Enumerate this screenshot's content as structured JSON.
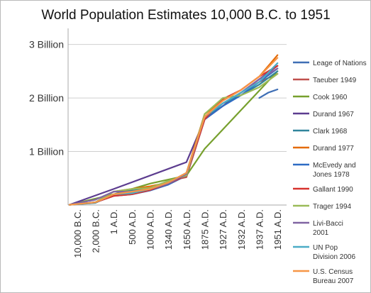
{
  "chart_data": {
    "type": "line",
    "title": "World Population Estimates 10,000 B.C. to 1951",
    "categories": [
      "10,000 B.C.",
      "2,000 B.C.",
      "1 A.D.",
      "500 A.D.",
      "1000 A.D.",
      "1340 A.D.",
      "1650 A.D.",
      "1875 A.D.",
      "1927 A.D.",
      "1932 A.D.",
      "1937 A.D.",
      "1951 A.D."
    ],
    "y_ticks": [
      {
        "value": 1,
        "label": "1 Billion"
      },
      {
        "value": 2,
        "label": "2 Billion"
      },
      {
        "value": 3,
        "label": "3 Billion"
      }
    ],
    "ylim": [
      0,
      3.3
    ],
    "grid": "horizontal",
    "legend_position": "right",
    "series": [
      {
        "name": "Leage of Nations",
        "color": "#3f6fb5",
        "points": [
          [
            10,
            2.0
          ],
          [
            10.5,
            2.1
          ],
          [
            11,
            2.16
          ]
        ]
      },
      {
        "name": "Taeuber 1949",
        "color": "#c0504d",
        "points": [
          [
            0,
            0.005
          ],
          [
            1,
            0.05
          ],
          [
            2,
            0.2
          ],
          [
            3,
            0.25
          ],
          [
            4,
            0.3
          ],
          [
            5,
            0.45
          ],
          [
            6,
            0.52
          ],
          [
            7,
            1.6
          ],
          [
            8,
            1.85
          ],
          [
            9,
            2.1
          ],
          [
            10,
            2.3
          ],
          [
            11,
            2.45
          ]
        ]
      },
      {
        "name": "Cook 1960",
        "color": "#77a02e",
        "points": [
          [
            0,
            0.005
          ],
          [
            2,
            0.2
          ],
          [
            4,
            0.4
          ],
          [
            6,
            0.55
          ],
          [
            7,
            1.05
          ],
          [
            11,
            2.5
          ]
        ]
      },
      {
        "name": "Durand 1967",
        "color": "#5c3c8f",
        "points": [
          [
            0,
            0.005
          ],
          [
            2,
            0.3
          ],
          [
            6,
            0.8
          ],
          [
            7,
            1.6
          ],
          [
            11,
            2.6
          ]
        ]
      },
      {
        "name": "Clark 1968",
        "color": "#31859c",
        "points": [
          [
            0,
            0.005
          ],
          [
            1,
            0.04
          ],
          [
            2,
            0.2
          ],
          [
            3,
            0.27
          ],
          [
            4,
            0.3
          ],
          [
            5,
            0.4
          ],
          [
            6,
            0.6
          ],
          [
            7,
            1.6
          ],
          [
            8,
            1.9
          ],
          [
            9,
            2.05
          ],
          [
            10,
            2.25
          ],
          [
            11,
            2.5
          ]
        ]
      },
      {
        "name": "Durand 1977",
        "color": "#e46c0a",
        "points": [
          [
            0,
            0.005
          ],
          [
            1,
            0.05
          ],
          [
            2,
            0.25
          ],
          [
            3,
            0.3
          ],
          [
            4,
            0.35
          ],
          [
            5,
            0.42
          ],
          [
            6,
            0.6
          ],
          [
            7,
            1.7
          ],
          [
            8,
            1.95
          ],
          [
            9,
            2.15
          ],
          [
            10,
            2.4
          ],
          [
            11,
            2.8
          ]
        ]
      },
      {
        "name": "McEvedy and Jones 1978",
        "color": "#2e6cc4",
        "points": [
          [
            0,
            0.005
          ],
          [
            1,
            0.05
          ],
          [
            2,
            0.17
          ],
          [
            3,
            0.2
          ],
          [
            4,
            0.27
          ],
          [
            5,
            0.38
          ],
          [
            6,
            0.55
          ],
          [
            7,
            1.6
          ],
          [
            8,
            1.85
          ],
          [
            9,
            2.05
          ],
          [
            10,
            2.3
          ],
          [
            11,
            2.55
          ]
        ]
      },
      {
        "name": "Gallant 1990",
        "color": "#d7322e",
        "points": [
          [
            0,
            0.005
          ],
          [
            1,
            0.05
          ],
          [
            2,
            0.17
          ],
          [
            3,
            0.2
          ],
          [
            4,
            0.28
          ],
          [
            5,
            0.4
          ],
          [
            6,
            0.55
          ],
          [
            7,
            1.6
          ],
          [
            8,
            1.98
          ],
          [
            9,
            2.15
          ],
          [
            10,
            2.4
          ],
          [
            11,
            2.6
          ]
        ]
      },
      {
        "name": "Trager 1994",
        "color": "#9bbb59",
        "points": [
          [
            0,
            0.005
          ],
          [
            1,
            0.05
          ],
          [
            2,
            0.25
          ],
          [
            3,
            0.3
          ],
          [
            4,
            0.32
          ],
          [
            5,
            0.45
          ],
          [
            6,
            0.55
          ],
          [
            7,
            1.7
          ],
          [
            8,
            2.0
          ],
          [
            9,
            2.05
          ],
          [
            10,
            2.2
          ],
          [
            11,
            2.45
          ]
        ]
      },
      {
        "name": "Livi-Bacci 2001",
        "color": "#8064a2",
        "points": [
          [
            0,
            0.005
          ],
          [
            1,
            0.1
          ],
          [
            2,
            0.25
          ],
          [
            3,
            0.25
          ],
          [
            4,
            0.3
          ],
          [
            5,
            0.4
          ],
          [
            6,
            0.58
          ],
          [
            7,
            1.65
          ],
          [
            8,
            1.9
          ],
          [
            9,
            2.1
          ],
          [
            10,
            2.35
          ],
          [
            11,
            2.55
          ]
        ]
      },
      {
        "name": "UN Pop Division 2006",
        "color": "#4bacc6",
        "points": [
          [
            0,
            0.005
          ],
          [
            1,
            0.05
          ],
          [
            2,
            0.2
          ],
          [
            3,
            0.22
          ],
          [
            4,
            0.3
          ],
          [
            5,
            0.42
          ],
          [
            6,
            0.6
          ],
          [
            7,
            1.65
          ],
          [
            8,
            1.9
          ],
          [
            9,
            2.1
          ],
          [
            10,
            2.3
          ],
          [
            11,
            2.65
          ]
        ]
      },
      {
        "name": "U.S. Census Bureau 2007",
        "color": "#f79646",
        "points": [
          [
            0,
            0.005
          ],
          [
            1,
            0.05
          ],
          [
            2,
            0.2
          ],
          [
            3,
            0.25
          ],
          [
            4,
            0.3
          ],
          [
            5,
            0.42
          ],
          [
            6,
            0.6
          ],
          [
            7,
            1.65
          ],
          [
            8,
            1.95
          ],
          [
            9,
            2.15
          ],
          [
            10,
            2.4
          ],
          [
            11,
            2.75
          ]
        ]
      }
    ],
    "legend_lines": [
      [
        "Leage of Nations"
      ],
      [
        "Taeuber 1949"
      ],
      [
        "Cook 1960"
      ],
      [
        "Durand 1967"
      ],
      [
        "Clark 1968"
      ],
      [
        "Durand 1977"
      ],
      [
        "McEvedy and",
        "Jones 1978"
      ],
      [
        "Gallant 1990"
      ],
      [
        "Trager 1994"
      ],
      [
        "Livi-Bacci",
        "2001"
      ],
      [
        "UN Pop",
        "Division 2006"
      ],
      [
        "U.S. Census",
        "Bureau 2007"
      ]
    ]
  }
}
